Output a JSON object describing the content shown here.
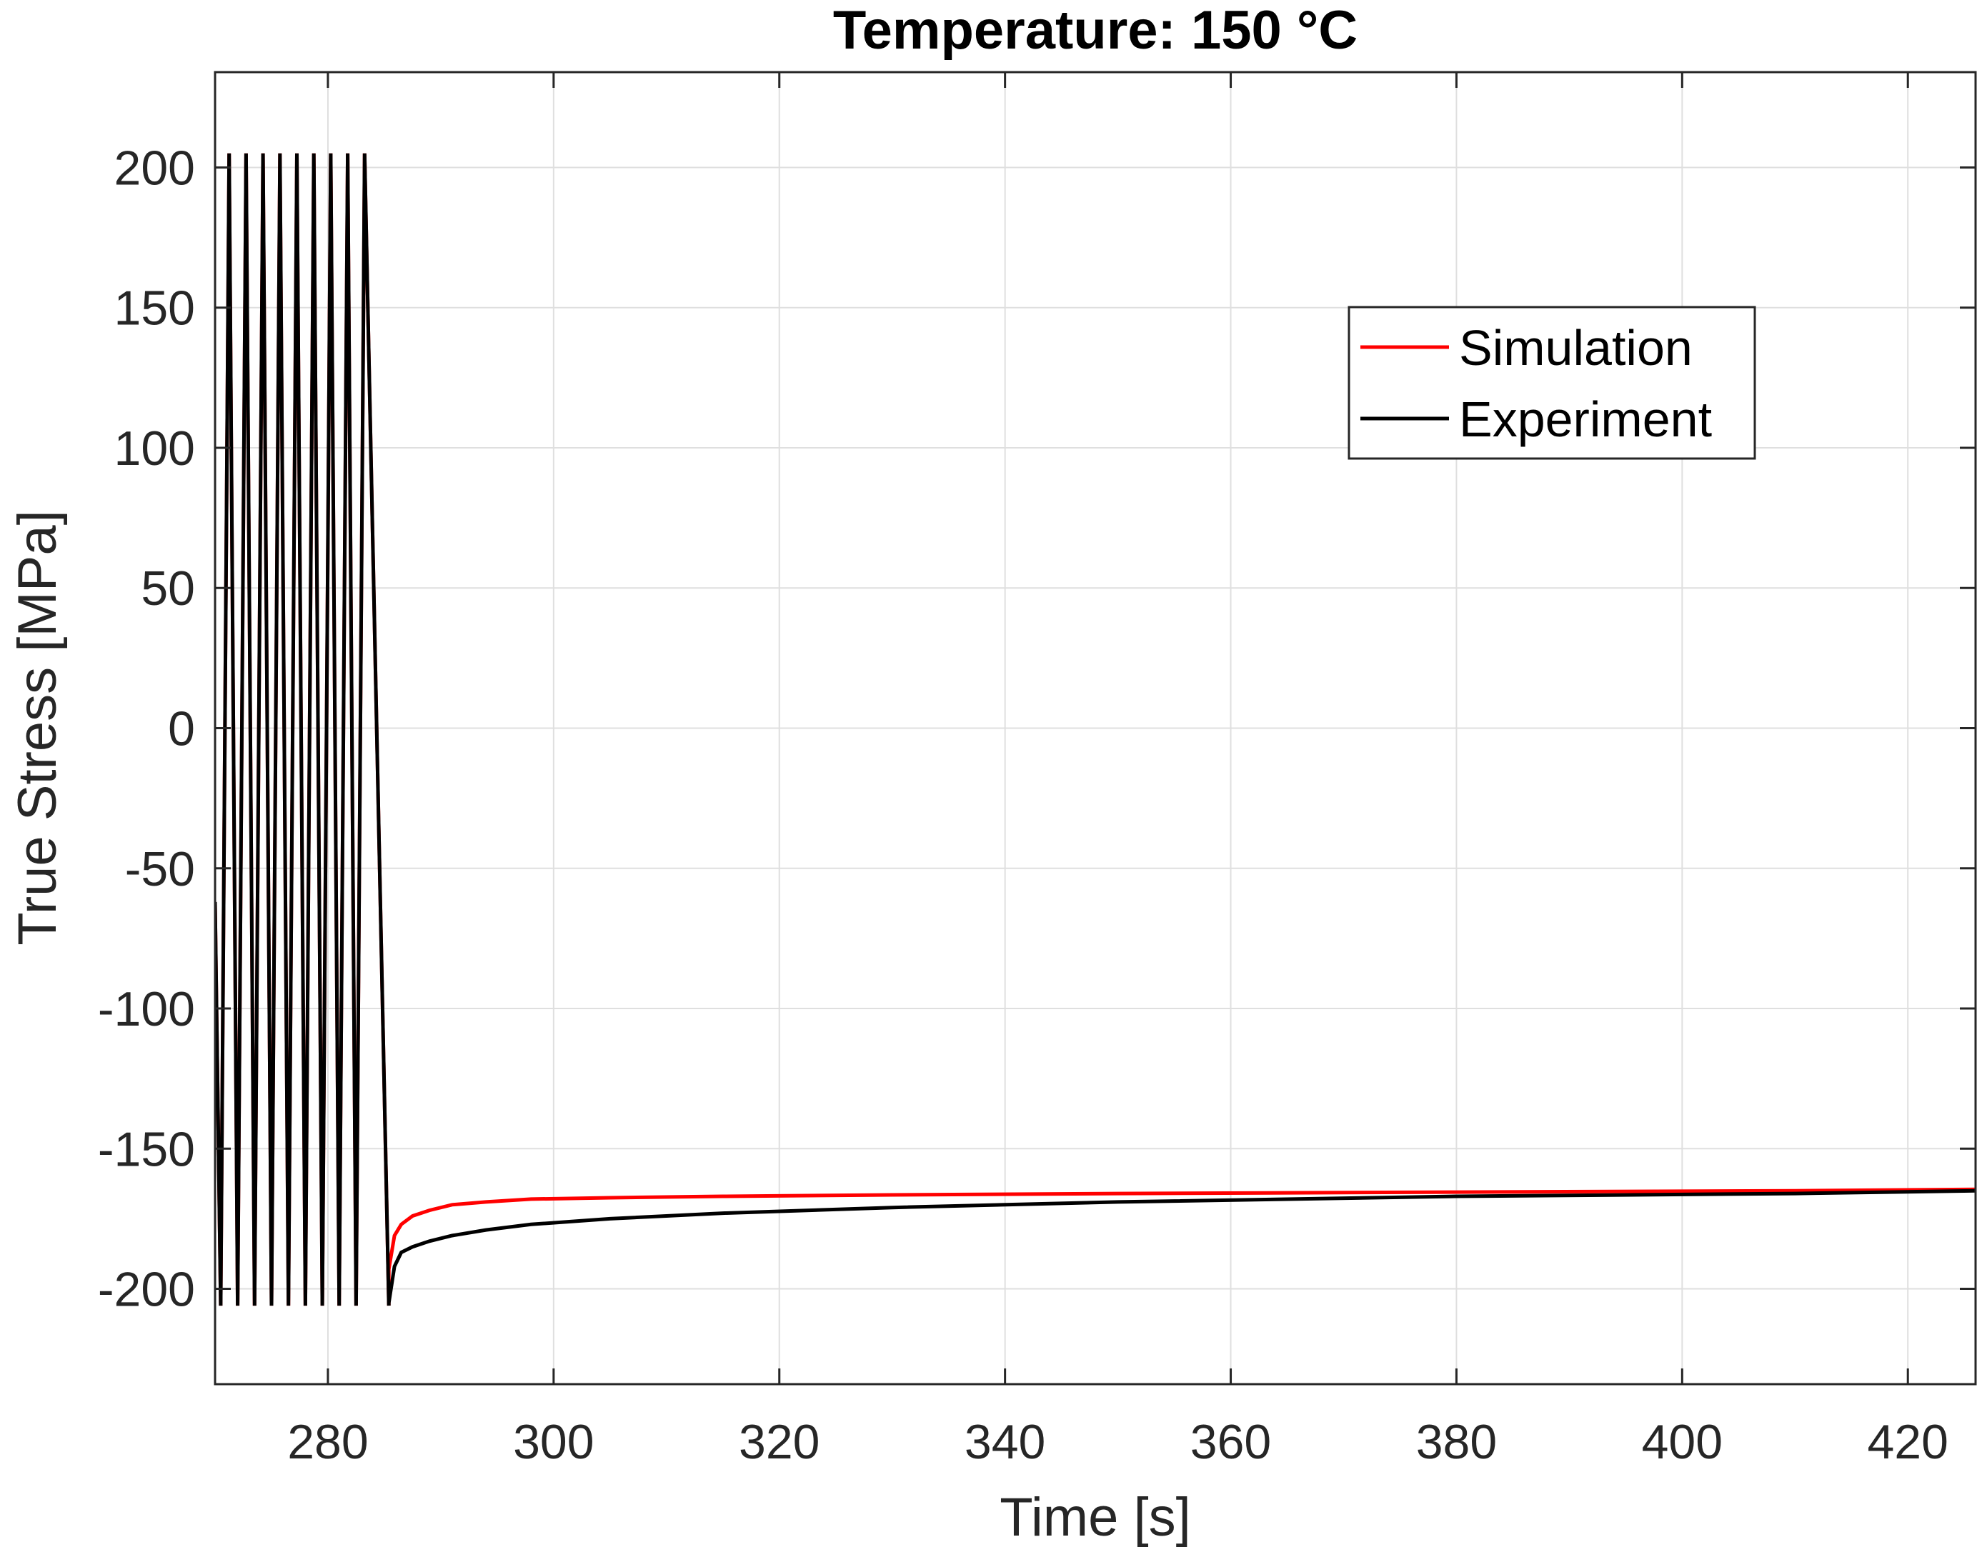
{
  "chart_data": {
    "type": "line",
    "title": "Temperature: 150 °C",
    "xlabel": "Time [s]",
    "ylabel": "True Stress [MPa]",
    "xlim": [
      270,
      426
    ],
    "ylim": [
      -234,
      234
    ],
    "xticks": [
      280,
      300,
      320,
      340,
      360,
      380,
      400,
      420
    ],
    "yticks": [
      200,
      150,
      100,
      50,
      0,
      -50,
      -100,
      -150,
      -200
    ],
    "grid": true,
    "legend_position": "top-right",
    "cycles": {
      "start": 270,
      "first_peak": 271.25,
      "period": 1.5,
      "count": 9,
      "peak": 205,
      "trough": -206,
      "hold_start": 285.4,
      "start_value": -62
    },
    "series": [
      {
        "name": "Simulation",
        "color": "#ff0000",
        "hold": {
          "t": [
            285.4,
            285.9,
            286.5,
            287.5,
            289,
            291,
            294,
            298,
            305,
            315,
            330,
            350,
            380,
            410,
            426
          ],
          "values": [
            -193,
            -181,
            -177,
            -174,
            -172,
            -170,
            -169,
            -168,
            -167.5,
            -167,
            -166.5,
            -166,
            -165.5,
            -165,
            -164.5
          ]
        }
      },
      {
        "name": "Experiment",
        "color": "#000000",
        "hold": {
          "t": [
            285.4,
            285.9,
            286.5,
            287.5,
            289,
            291,
            294,
            298,
            305,
            315,
            330,
            350,
            380,
            410,
            426
          ],
          "values": [
            -205,
            -192,
            -187,
            -185,
            -183,
            -181,
            -179,
            -177,
            -175,
            -173,
            -171,
            -169,
            -167,
            -166,
            -165
          ]
        }
      }
    ]
  }
}
